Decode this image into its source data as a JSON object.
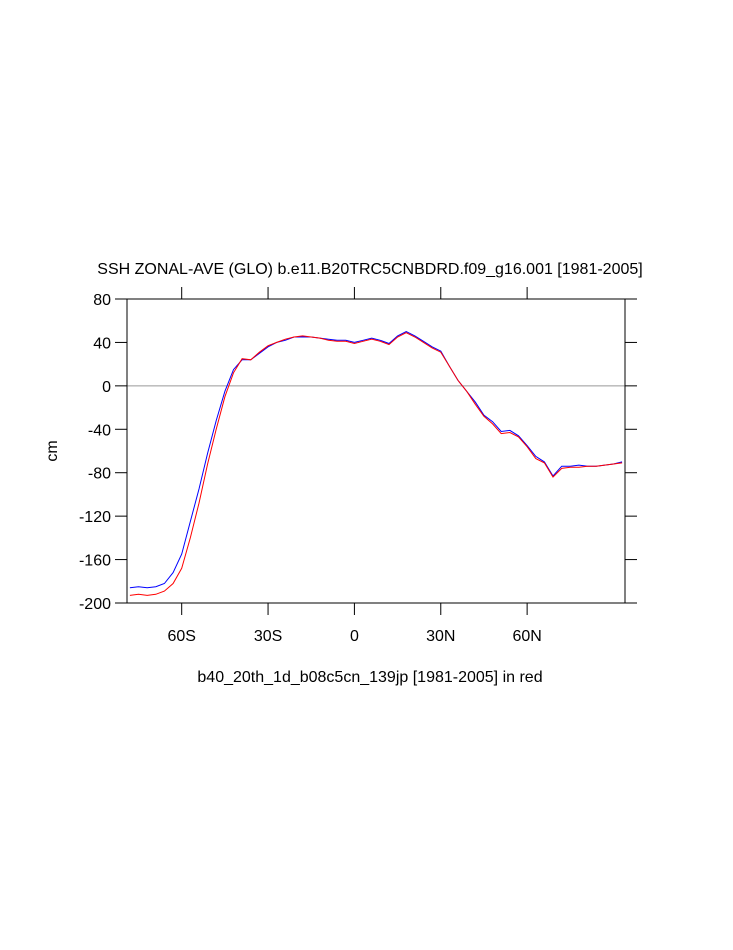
{
  "chart_data": {
    "type": "line",
    "title": "SSH ZONAL-AVE (GLO) b.e11.B20TRC5CNBDRD.f09_g16.001 [1981-2005]",
    "x_label": "b40_20th_1d_b08c5cn_139jp [1981-2005] in red",
    "y_label": "cm",
    "x": [
      -78,
      -75,
      -72,
      -69,
      -66,
      -63,
      -60,
      -57,
      -54,
      -51,
      -48,
      -45,
      -42,
      -39,
      -36,
      -33,
      -30,
      -27,
      -24,
      -21,
      -18,
      -15,
      -12,
      -9,
      -6,
      -3,
      0,
      3,
      6,
      9,
      12,
      15,
      18,
      21,
      24,
      27,
      30,
      33,
      36,
      39,
      42,
      45,
      48,
      51,
      54,
      57,
      60,
      63,
      66,
      69,
      72,
      75,
      78,
      81,
      84,
      87,
      90,
      93
    ],
    "series": [
      {
        "color": "#0000ff",
        "values": [
          -186,
          -185,
          -186,
          -185,
          -182,
          -172,
          -155,
          -125,
          -95,
          -62,
          -32,
          -5,
          15,
          24,
          24,
          30,
          36,
          40,
          42,
          45,
          45,
          45,
          44,
          43,
          42,
          42,
          40,
          42,
          44,
          42,
          39,
          46,
          50,
          46,
          41,
          36,
          32,
          18,
          5,
          -5,
          -15,
          -27,
          -33,
          -42,
          -41,
          -46,
          -55,
          -65,
          -70,
          -83,
          -74,
          -74,
          -73,
          -74,
          -74,
          -73,
          -72,
          -70
        ]
      },
      {
        "color": "#ff0000",
        "values": [
          -193,
          -192,
          -193,
          -192,
          -189,
          -182,
          -168,
          -140,
          -108,
          -72,
          -40,
          -10,
          12,
          25,
          24,
          31,
          37,
          40,
          43,
          45,
          46,
          45,
          44,
          42,
          41,
          41,
          39,
          41,
          43,
          41,
          38,
          45,
          49,
          45,
          40,
          35,
          31,
          18,
          5,
          -5,
          -17,
          -28,
          -35,
          -44,
          -43,
          -47,
          -56,
          -67,
          -71,
          -84,
          -76,
          -75,
          -75,
          -74,
          -74,
          -73,
          -72,
          -71
        ]
      }
    ],
    "xlim": [
      -79,
      94
    ],
    "xticks": [
      {
        "value": -60,
        "label": "60S"
      },
      {
        "value": -30,
        "label": "30S"
      },
      0,
      {
        "value": 30,
        "label": "30N"
      },
      {
        "value": 60,
        "label": "60N"
      }
    ],
    "ylim": [
      -200,
      80
    ],
    "yticks": [
      80,
      40,
      0,
      -40,
      -80,
      -120,
      -160,
      -200
    ]
  }
}
